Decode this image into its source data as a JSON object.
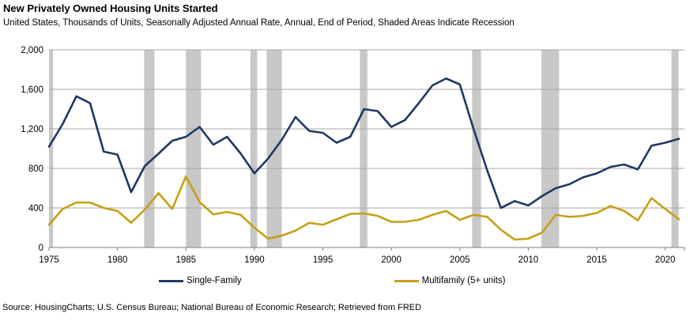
{
  "header": {
    "title": "New Privately Owned Housing Units Started",
    "subtitle": "United States, Thousands of Units, Seasonally Adjusted Annual Rate, Annual, End of Period, Shaded Areas Indicate Recession"
  },
  "source": "Source: HousingCharts; U.S. Census Bureau; National Bureau of Economic Research; Retrieved from FRED",
  "colors": {
    "single_family": "#1F3864",
    "multifamily": "#C5A016",
    "recession": "#C8C8C8",
    "gridline": "#A6A6A6",
    "axis": "#808080"
  },
  "legend": [
    {
      "label": "Single-Family",
      "color_key": "single_family"
    },
    {
      "label": "Multifamily (5+ units)",
      "color_key": "multifamily"
    }
  ],
  "chart_data": {
    "type": "line",
    "title": "New Privately Owned Housing Units Started",
    "subtitle": "United States, Thousands of Units, Seasonally Adjusted Annual Rate, Annual, End of Period, Shaded Areas Indicate Recession",
    "xlabel": "",
    "ylabel": "Thousands of Units",
    "ylim": [
      0,
      2000
    ],
    "y_ticks": [
      0,
      400,
      800,
      1200,
      1600,
      2000
    ],
    "x_ticks": [
      1975,
      1980,
      1985,
      1990,
      1995,
      2000,
      2005,
      2010,
      2015,
      2020
    ],
    "grid": true,
    "legend_position": "bottom",
    "x": [
      1975,
      1976,
      1977,
      1978,
      1979,
      1980,
      1981,
      1982,
      1983,
      1984,
      1985,
      1986,
      1987,
      1988,
      1989,
      1990,
      1991,
      1992,
      1993,
      1994,
      1995,
      1996,
      1997,
      1998,
      1999,
      2000,
      2001,
      2002,
      2003,
      2004,
      2005,
      2006,
      2007,
      2008,
      2009,
      2010,
      2011,
      2012,
      2013,
      2014,
      2015,
      2016,
      2017,
      2018,
      2019,
      2020,
      2021
    ],
    "series": [
      {
        "name": "Single-Family",
        "color_key": "single_family",
        "values": [
          1020,
          1250,
          1530,
          1460,
          970,
          940,
          560,
          825,
          950,
          1080,
          1120,
          1220,
          1040,
          1120,
          950,
          750,
          900,
          1090,
          1320,
          1180,
          1160,
          1060,
          1120,
          1400,
          1380,
          1220,
          1290,
          1460,
          1640,
          1710,
          1650,
          1200,
          780,
          400,
          470,
          425,
          520,
          600,
          640,
          710,
          750,
          815,
          840,
          790,
          1030,
          1060,
          1100
        ]
      },
      {
        "name": "Multifamily (5+ units)",
        "color_key": "multifamily",
        "values": [
          230,
          390,
          455,
          455,
          400,
          370,
          250,
          385,
          550,
          390,
          720,
          460,
          335,
          360,
          330,
          200,
          90,
          120,
          170,
          250,
          230,
          285,
          340,
          345,
          320,
          260,
          260,
          280,
          330,
          370,
          280,
          330,
          310,
          180,
          80,
          90,
          150,
          330,
          310,
          320,
          350,
          420,
          370,
          275,
          500,
          390,
          285
        ]
      }
    ],
    "recession_bands": [
      [
        1974.95,
        1975.3
      ],
      [
        1981.95,
        1982.7
      ],
      [
        1985.0,
        1986.1
      ],
      [
        1989.7,
        1990.2
      ],
      [
        1990.9,
        1992.0
      ],
      [
        1997.7,
        1998.25
      ],
      [
        2005.9,
        2006.55
      ],
      [
        2010.95,
        2012.25
      ],
      [
        2020.45,
        2020.98
      ]
    ]
  }
}
